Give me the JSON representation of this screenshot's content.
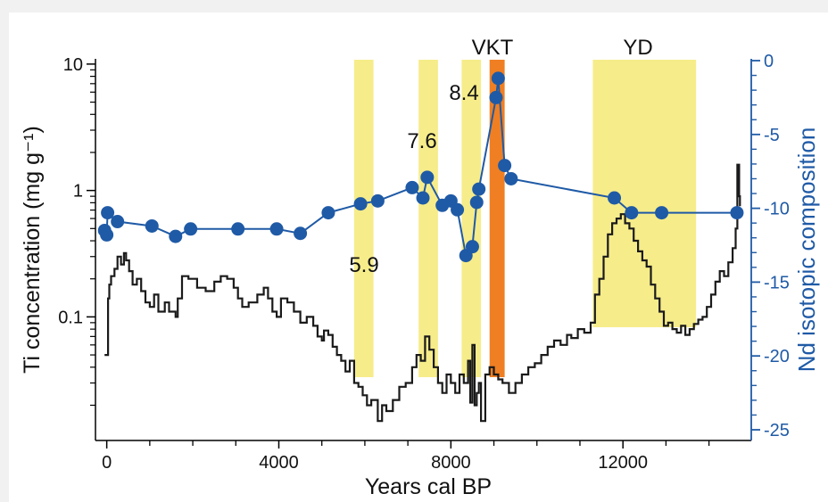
{
  "chart_data": {
    "type": "line",
    "xlabel": "Years cal BP",
    "ylabel_left": "Ti concentration (mg g⁻¹)",
    "ylabel_right": "Nd isotopic composition",
    "x_ticks": [
      0,
      4000,
      8000,
      12000
    ],
    "y_left_scale": "log",
    "y_left_ticks": [
      "0.1",
      "1",
      "10"
    ],
    "y_left_tick_values": [
      0.1,
      1,
      10
    ],
    "y_left_range": [
      0.013,
      11
    ],
    "y_right_ticks": [
      "0",
      "-5",
      "-10",
      "-15",
      "-20",
      "-25"
    ],
    "y_right_tick_values": [
      0,
      -5,
      -10,
      -15,
      -20,
      -25
    ],
    "y_right_range": [
      -25,
      0
    ],
    "x_range": [
      -200,
      14900
    ],
    "grid": false,
    "colors": {
      "ti_line": "#1a1a1a",
      "nd_series": "#1f5aa6",
      "right_axis": "#1f5aa6",
      "event_band": "#f6ec8a",
      "vkt_band": "#ef7f22"
    },
    "bands": [
      {
        "label": "5.9",
        "x0": 5750,
        "x1": 6200,
        "color": "yellow"
      },
      {
        "label": "7.6",
        "x0": 7250,
        "x1": 7700,
        "color": "yellow"
      },
      {
        "label": "8.4",
        "x0": 8250,
        "x1": 8700,
        "color": "yellow"
      },
      {
        "label": "VKT",
        "x0": 8900,
        "x1": 9250,
        "color": "orange"
      },
      {
        "label": "YD",
        "x0": 11300,
        "x1": 13700,
        "color": "yellow"
      }
    ],
    "band_labels": [
      "5.9",
      "7.6",
      "8.4",
      "VKT",
      "YD"
    ],
    "series": [
      {
        "name": "Nd isotopic composition",
        "axis": "right",
        "points": [
          [
            -50,
            -11.5
          ],
          [
            0,
            -11.8
          ],
          [
            20,
            -10.3
          ],
          [
            250,
            -10.9
          ],
          [
            1050,
            -11.2
          ],
          [
            1600,
            -11.9
          ],
          [
            1950,
            -11.4
          ],
          [
            3050,
            -11.4
          ],
          [
            3950,
            -11.4
          ],
          [
            4500,
            -11.7
          ],
          [
            5150,
            -10.3
          ],
          [
            5900,
            -9.7
          ],
          [
            6300,
            -9.5
          ],
          [
            7100,
            -8.6
          ],
          [
            7350,
            -9.3
          ],
          [
            7450,
            -7.9
          ],
          [
            7800,
            -9.8
          ],
          [
            8000,
            -9.5
          ],
          [
            8150,
            -10.1
          ],
          [
            8350,
            -13.2
          ],
          [
            8500,
            -12.6
          ],
          [
            8600,
            -9.6
          ],
          [
            8650,
            -8.7
          ],
          [
            9050,
            -2.5
          ],
          [
            9100,
            -1.2
          ],
          [
            9250,
            -7.1
          ],
          [
            9400,
            -8.0
          ],
          [
            11800,
            -9.3
          ],
          [
            12200,
            -10.3
          ],
          [
            12900,
            -10.3
          ],
          [
            14650,
            -10.3
          ]
        ]
      },
      {
        "name": "Ti concentration",
        "axis": "left",
        "points": [
          [
            -50,
            0.05
          ],
          [
            30,
            0.14
          ],
          [
            60,
            0.18
          ],
          [
            100,
            0.21
          ],
          [
            180,
            0.24
          ],
          [
            250,
            0.3
          ],
          [
            330,
            0.26
          ],
          [
            400,
            0.32
          ],
          [
            450,
            0.28
          ],
          [
            520,
            0.23
          ],
          [
            600,
            0.18
          ],
          [
            700,
            0.2
          ],
          [
            800,
            0.16
          ],
          [
            900,
            0.13
          ],
          [
            1000,
            0.12
          ],
          [
            1100,
            0.15
          ],
          [
            1200,
            0.11
          ],
          [
            1350,
            0.13
          ],
          [
            1450,
            0.11
          ],
          [
            1600,
            0.1
          ],
          [
            1650,
            0.14
          ],
          [
            1750,
            0.21
          ],
          [
            1900,
            0.2
          ],
          [
            2100,
            0.17
          ],
          [
            2300,
            0.16
          ],
          [
            2500,
            0.19
          ],
          [
            2650,
            0.21
          ],
          [
            2800,
            0.2
          ],
          [
            2950,
            0.17
          ],
          [
            3050,
            0.14
          ],
          [
            3150,
            0.12
          ],
          [
            3300,
            0.13
          ],
          [
            3500,
            0.15
          ],
          [
            3650,
            0.17
          ],
          [
            3750,
            0.14
          ],
          [
            3850,
            0.11
          ],
          [
            3950,
            0.1
          ],
          [
            4050,
            0.14
          ],
          [
            4200,
            0.13
          ],
          [
            4350,
            0.11
          ],
          [
            4500,
            0.09
          ],
          [
            4650,
            0.1
          ],
          [
            4800,
            0.085
          ],
          [
            4900,
            0.07
          ],
          [
            5000,
            0.065
          ],
          [
            5050,
            0.078
          ],
          [
            5150,
            0.072
          ],
          [
            5250,
            0.058
          ],
          [
            5350,
            0.05
          ],
          [
            5450,
            0.045
          ],
          [
            5550,
            0.037
          ],
          [
            5650,
            0.045
          ],
          [
            5750,
            0.03
          ],
          [
            5850,
            0.028
          ],
          [
            5950,
            0.024
          ],
          [
            6050,
            0.02
          ],
          [
            6150,
            0.022
          ],
          [
            6300,
            0.015
          ],
          [
            6400,
            0.02
          ],
          [
            6500,
            0.018
          ],
          [
            6650,
            0.022
          ],
          [
            6800,
            0.028
          ],
          [
            6950,
            0.03
          ],
          [
            7100,
            0.04
          ],
          [
            7200,
            0.05
          ],
          [
            7300,
            0.045
          ],
          [
            7400,
            0.07
          ],
          [
            7500,
            0.055
          ],
          [
            7600,
            0.04
          ],
          [
            7700,
            0.03
          ],
          [
            7800,
            0.025
          ],
          [
            7900,
            0.035
          ],
          [
            8000,
            0.03
          ],
          [
            8100,
            0.025
          ],
          [
            8200,
            0.035
          ],
          [
            8300,
            0.03
          ],
          [
            8400,
            0.045
          ],
          [
            8450,
            0.021
          ],
          [
            8500,
            0.06
          ],
          [
            8550,
            0.02
          ],
          [
            8600,
            0.025
          ],
          [
            8650,
            0.03
          ],
          [
            8700,
            0.015
          ],
          [
            8800,
            0.035
          ],
          [
            8900,
            0.04
          ],
          [
            9000,
            0.035
          ],
          [
            9100,
            0.032
          ],
          [
            9200,
            0.03
          ],
          [
            9350,
            0.025
          ],
          [
            9500,
            0.03
          ],
          [
            9650,
            0.035
          ],
          [
            9800,
            0.04
          ],
          [
            9950,
            0.043
          ],
          [
            10100,
            0.05
          ],
          [
            10250,
            0.058
          ],
          [
            10400,
            0.065
          ],
          [
            10550,
            0.06
          ],
          [
            10700,
            0.072
          ],
          [
            10800,
            0.068
          ],
          [
            10950,
            0.08
          ],
          [
            11100,
            0.075
          ],
          [
            11250,
            0.09
          ],
          [
            11350,
            0.15
          ],
          [
            11450,
            0.2
          ],
          [
            11550,
            0.3
          ],
          [
            11650,
            0.45
          ],
          [
            11750,
            0.55
          ],
          [
            11850,
            0.6
          ],
          [
            11950,
            0.65
          ],
          [
            12050,
            0.55
          ],
          [
            12150,
            0.5
          ],
          [
            12250,
            0.4
          ],
          [
            12350,
            0.33
          ],
          [
            12450,
            0.28
          ],
          [
            12550,
            0.25
          ],
          [
            12650,
            0.18
          ],
          [
            12750,
            0.14
          ],
          [
            12850,
            0.11
          ],
          [
            12950,
            0.085
          ],
          [
            13050,
            0.09
          ],
          [
            13150,
            0.08
          ],
          [
            13250,
            0.075
          ],
          [
            13350,
            0.085
          ],
          [
            13450,
            0.072
          ],
          [
            13550,
            0.08
          ],
          [
            13650,
            0.088
          ],
          [
            13750,
            0.095
          ],
          [
            13850,
            0.1
          ],
          [
            13950,
            0.12
          ],
          [
            14050,
            0.15
          ],
          [
            14150,
            0.19
          ],
          [
            14250,
            0.23
          ],
          [
            14350,
            0.21
          ],
          [
            14450,
            0.27
          ],
          [
            14550,
            0.35
          ],
          [
            14620,
            0.5
          ],
          [
            14660,
            1.6
          ],
          [
            14700,
            0.9
          ],
          [
            14720,
            0.75
          ]
        ]
      }
    ]
  }
}
